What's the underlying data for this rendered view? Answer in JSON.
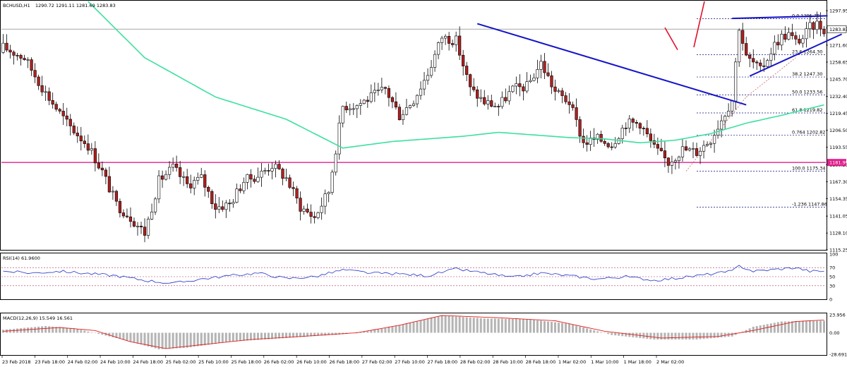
{
  "header": {
    "symbol": "BCHUSD,H1",
    "ohlc": "1290.72 1291.11 1281.69 1283.83"
  },
  "price_tags": {
    "current": "1283.83",
    "level": "1181.99"
  },
  "rsi": {
    "title": "RSI(14) 61.9600"
  },
  "macd": {
    "title": "MACD(12,26,9) 15.549 16.561"
  },
  "colors": {
    "bull_body": "#ffffff",
    "bear_body": "#b02020",
    "wick": "#000000",
    "ma_line": "#3ce0a0",
    "trendline": "#1414c8",
    "horizontal_level": "#e0208c",
    "red_arrow": "#e0102a",
    "fib_line": "#0d0d7a",
    "rsi_line": "#2232c8",
    "rsi_ref": "#b03060",
    "macd_signal": "#e02020",
    "macd_hist": "#b4b4b4"
  },
  "chart_data": [
    {
      "type": "candlestick",
      "title": "BCHUSD,H1",
      "ylim": [
        1115.25,
        1305.0
      ],
      "y_ticks": [
        "1297.95",
        "1284.65",
        "1271.60",
        "1258.65",
        "1245.70",
        "1232.40",
        "1219.45",
        "1206.50",
        "1193.55",
        "1180.25",
        "1167.30",
        "1154.35",
        "1141.05",
        "1128.10",
        "1115.25"
      ],
      "x_ticks": [
        "23 Feb 2018",
        "23 Feb 18:00",
        "24 Feb 02:00",
        "24 Feb 10:00",
        "24 Feb 18:00",
        "25 Feb 02:00",
        "25 Feb 10:00",
        "25 Feb 18:00",
        "26 Feb 02:00",
        "26 Feb 10:00",
        "26 Feb 18:00",
        "27 Feb 02:00",
        "27 Feb 10:00",
        "27 Feb 18:00",
        "28 Feb 02:00",
        "28 Feb 10:00",
        "28 Feb 18:00",
        "1 Mar 02:00",
        "1 Mar 10:00",
        "1 Mar 18:00",
        "2 Mar 02:00"
      ],
      "fib_levels": [
        {
          "label": "0.0  1291.78",
          "value": 1291.78
        },
        {
          "label": "23.6  1264.30",
          "value": 1264.3
        },
        {
          "label": "38.2  1247.30",
          "value": 1247.3
        },
        {
          "label": "50.0  1233.56",
          "value": 1233.56
        },
        {
          "label": "61.8  1219.82",
          "value": 1219.82
        },
        {
          "label": "0.764  1202.82",
          "value": 1202.82
        },
        {
          "label": "100.0  1175.34",
          "value": 1175.34
        },
        {
          "label": "-1.236  1147.86",
          "value": 1147.86
        }
      ],
      "horizontal_level": 1181.99,
      "last_price": 1283.83,
      "anchors": [
        [
          0,
          1270
        ],
        [
          6,
          1262
        ],
        [
          12,
          1235
        ],
        [
          18,
          1212
        ],
        [
          24,
          1195
        ],
        [
          28,
          1175
        ],
        [
          32,
          1150
        ],
        [
          36,
          1140
        ],
        [
          40,
          1128
        ],
        [
          44,
          1168
        ],
        [
          48,
          1178
        ],
        [
          52,
          1165
        ],
        [
          56,
          1170
        ],
        [
          60,
          1148
        ],
        [
          64,
          1150
        ],
        [
          68,
          1168
        ],
        [
          72,
          1172
        ],
        [
          76,
          1180
        ],
        [
          80,
          1170
        ],
        [
          84,
          1148
        ],
        [
          88,
          1140
        ],
        [
          92,
          1160
        ],
        [
          96,
          1225
        ],
        [
          100,
          1226
        ],
        [
          104,
          1232
        ],
        [
          108,
          1238
        ],
        [
          112,
          1218
        ],
        [
          116,
          1230
        ],
        [
          120,
          1250
        ],
        [
          124,
          1278
        ],
        [
          128,
          1275
        ],
        [
          132,
          1238
        ],
        [
          136,
          1228
        ],
        [
          140,
          1225
        ],
        [
          144,
          1238
        ],
        [
          148,
          1240
        ],
        [
          152,
          1258
        ],
        [
          156,
          1236
        ],
        [
          160,
          1228
        ],
        [
          164,
          1197
        ],
        [
          168,
          1200
        ],
        [
          172,
          1196
        ],
        [
          176,
          1212
        ],
        [
          180,
          1212
        ],
        [
          184,
          1193
        ],
        [
          188,
          1182
        ],
        [
          192,
          1192
        ],
        [
          196,
          1190
        ],
        [
          200,
          1200
        ],
        [
          204,
          1220
        ],
        [
          206,
          1230
        ],
        [
          208,
          1286
        ],
        [
          210,
          1262
        ],
        [
          212,
          1258
        ],
        [
          214,
          1252
        ],
        [
          216,
          1262
        ],
        [
          218,
          1272
        ],
        [
          220,
          1278
        ],
        [
          222,
          1280
        ],
        [
          224,
          1274
        ],
        [
          226,
          1277
        ],
        [
          228,
          1285
        ],
        [
          230,
          1288
        ],
        [
          232,
          1283.83
        ]
      ],
      "ma_anchors": [
        [
          24,
          1305
        ],
        [
          40,
          1262
        ],
        [
          60,
          1232
        ],
        [
          80,
          1215
        ],
        [
          96,
          1193
        ],
        [
          110,
          1198
        ],
        [
          130,
          1202
        ],
        [
          140,
          1205
        ],
        [
          150,
          1203
        ],
        [
          160,
          1201
        ],
        [
          170,
          1200
        ],
        [
          180,
          1197
        ],
        [
          190,
          1199
        ],
        [
          200,
          1204
        ],
        [
          210,
          1212
        ],
        [
          220,
          1218
        ],
        [
          232,
          1226
        ]
      ]
    },
    {
      "type": "line",
      "title": "RSI(14) 61.9600",
      "ylim": [
        0,
        100
      ],
      "ref_levels": [
        70,
        50,
        30
      ],
      "y_ticks": [
        "100",
        "70",
        "50",
        "30",
        "0"
      ],
      "anchors": [
        [
          0,
          62
        ],
        [
          8,
          58
        ],
        [
          16,
          62
        ],
        [
          24,
          57
        ],
        [
          32,
          52
        ],
        [
          40,
          42
        ],
        [
          48,
          35
        ],
        [
          56,
          45
        ],
        [
          64,
          52
        ],
        [
          72,
          58
        ],
        [
          80,
          46
        ],
        [
          88,
          50
        ],
        [
          96,
          65
        ],
        [
          104,
          58
        ],
        [
          112,
          56
        ],
        [
          120,
          52
        ],
        [
          128,
          67
        ],
        [
          136,
          58
        ],
        [
          144,
          48
        ],
        [
          152,
          58
        ],
        [
          160,
          52
        ],
        [
          168,
          45
        ],
        [
          176,
          50
        ],
        [
          184,
          42
        ],
        [
          192,
          48
        ],
        [
          200,
          56
        ],
        [
          206,
          62
        ],
        [
          208,
          74
        ],
        [
          212,
          62
        ],
        [
          218,
          66
        ],
        [
          224,
          70
        ],
        [
          228,
          62
        ],
        [
          232,
          62
        ]
      ]
    },
    {
      "type": "bar",
      "title": "MACD(12,26,9) 15.549 16.561",
      "ylim": [
        -28.691,
        23.956
      ],
      "y_ticks": [
        "23.956",
        "0.00",
        "-28.691"
      ],
      "hist_anchors": [
        [
          0,
          4
        ],
        [
          12,
          9
        ],
        [
          20,
          6
        ],
        [
          32,
          -7
        ],
        [
          44,
          -22
        ],
        [
          52,
          -20
        ],
        [
          64,
          -12
        ],
        [
          80,
          -7
        ],
        [
          96,
          -2
        ],
        [
          108,
          6
        ],
        [
          124,
          23
        ],
        [
          136,
          19
        ],
        [
          148,
          18
        ],
        [
          160,
          12
        ],
        [
          172,
          -3
        ],
        [
          184,
          -9
        ],
        [
          196,
          -9
        ],
        [
          206,
          -5
        ],
        [
          212,
          8
        ],
        [
          220,
          15
        ],
        [
          232,
          16
        ]
      ],
      "signal_anchors": [
        [
          0,
          2
        ],
        [
          16,
          7
        ],
        [
          26,
          3
        ],
        [
          36,
          -12
        ],
        [
          46,
          -21
        ],
        [
          56,
          -16
        ],
        [
          70,
          -9
        ],
        [
          84,
          -5
        ],
        [
          100,
          0
        ],
        [
          112,
          10
        ],
        [
          124,
          23
        ],
        [
          140,
          20
        ],
        [
          156,
          16
        ],
        [
          170,
          2
        ],
        [
          186,
          -7
        ],
        [
          202,
          -5
        ],
        [
          212,
          3
        ],
        [
          224,
          15
        ],
        [
          232,
          17
        ]
      ]
    }
  ]
}
